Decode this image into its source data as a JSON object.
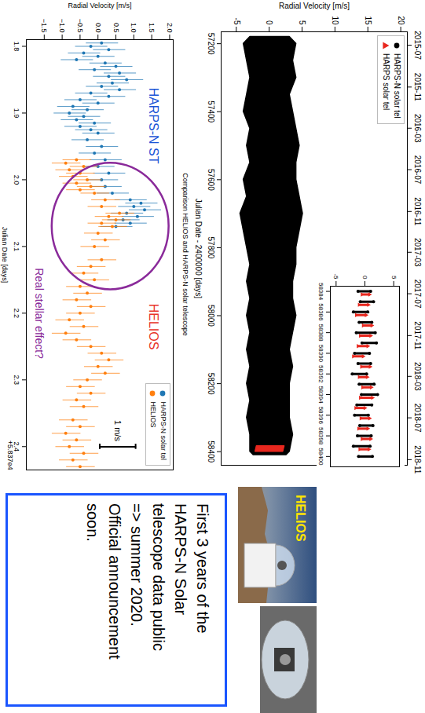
{
  "chart_data": [
    {
      "type": "band",
      "xlabel": "Julian Date - 2400000 [days]",
      "ylabel": "Radial Velocity [m/s]",
      "xlim": [
        57165,
        58440
      ],
      "xticks": [
        57200,
        57400,
        57600,
        57800,
        58000,
        58200,
        58400
      ],
      "x2ticks": [
        {
          "value": 57204.5,
          "label": "2015-07"
        },
        {
          "value": 57327.5,
          "label": "2015-11"
        },
        {
          "value": 57448.5,
          "label": "2016-03"
        },
        {
          "value": 57570.5,
          "label": "2016-07"
        },
        {
          "value": 57693.5,
          "label": "2016-11"
        },
        {
          "value": 57813.5,
          "label": "2017-03"
        },
        {
          "value": 57935.5,
          "label": "2017-07"
        },
        {
          "value": 58058.5,
          "label": "2017-11"
        },
        {
          "value": 58178.5,
          "label": "2018-03"
        },
        {
          "value": 58300.5,
          "label": "2018-07"
        },
        {
          "value": 58423.5,
          "label": "2018-11"
        }
      ],
      "ylim": [
        -7.3,
        21
      ],
      "yticks": [
        -5,
        0,
        5,
        10,
        15,
        20
      ],
      "legend": "top-left",
      "series": [
        {
          "name": "HARPS-N solar tel",
          "color": "#000000",
          "marker": "circle",
          "x": [
            57180,
            57200,
            57250,
            57300,
            57350,
            57400,
            57450,
            57500,
            57550,
            57600,
            57650,
            57700,
            57750,
            57800,
            57850,
            57900,
            57950,
            58000,
            58050,
            58100,
            58150,
            58200,
            58250,
            58300,
            58350,
            58400,
            58410
          ],
          "low": [
            -3,
            -4,
            -3.5,
            -3,
            -3.5,
            -4,
            -3,
            -3.5,
            -3,
            -4,
            -3.5,
            -4.5,
            -4,
            -3.5,
            -3,
            -3.5,
            -3,
            -3.5,
            -3,
            -3.5,
            -3,
            -3.5,
            -3,
            -3.5,
            -3,
            -3,
            -2.5
          ],
          "high": [
            3,
            4,
            3.5,
            4,
            3,
            3.5,
            4,
            4.5,
            4,
            4,
            4.5,
            5,
            4.5,
            4,
            4,
            3.5,
            3.5,
            4,
            3.5,
            3,
            3.5,
            3,
            3,
            3,
            3.5,
            3,
            2.5
          ]
        },
        {
          "name": "HARPS solar tel",
          "color": "#e8271e",
          "marker": "triangle",
          "x": [
            58384,
            58400
          ],
          "low": [
            -2.0,
            -2.2
          ],
          "high": [
            2.2,
            2.0
          ]
        }
      ]
    },
    {
      "type": "range",
      "xlim": [
        58383.5,
        58401
      ],
      "xticks": [
        58384,
        58386,
        58388,
        58390,
        58392,
        58394,
        58396,
        58398,
        58400
      ],
      "ylim": [
        -6,
        6
      ],
      "yticks": [
        -5,
        0,
        5
      ],
      "series": [
        {
          "name": "HARPS-N solar tel",
          "color": "#000000",
          "marker": "circle",
          "x": [
            58384,
            58385,
            58386,
            58387,
            58388,
            58389,
            58390,
            58391,
            58392,
            58393,
            58394,
            58395,
            58396,
            58397,
            58398,
            58399,
            58400
          ],
          "low": [
            -1.2,
            -0.8,
            -2.0,
            -1.0,
            -1.5,
            -0.5,
            -1.8,
            -1.2,
            -2.2,
            -1.0,
            -0.6,
            -1.4,
            -1.8,
            -0.9,
            -1.3,
            -2.0,
            -1.1
          ],
          "high": [
            1.0,
            1.5,
            0.5,
            1.2,
            1.8,
            2.0,
            0.8,
            1.0,
            0.3,
            1.6,
            2.2,
            1.2,
            0.6,
            1.4,
            1.1,
            0.9,
            1.3
          ]
        },
        {
          "name": "HARPS solar tel",
          "color": "#e8271e",
          "marker": "triangle",
          "x": [
            58384.3,
            58385.3,
            58386.3,
            58387.3,
            58388.3,
            58389.3,
            58390.3,
            58391.3,
            58392.3,
            58393.3,
            58394.3,
            58395.3,
            58396.3,
            58397.3,
            58398.3,
            58399.3
          ],
          "low": [
            -0.5,
            -1.0,
            -1.5,
            -0.3,
            -0.8,
            -1.2,
            -2.0,
            -0.6,
            -1.0,
            -0.4,
            -0.8,
            -1.6,
            -0.7,
            -1.1,
            -0.5,
            -0.9
          ],
          "high": [
            0.8,
            0.6,
            0.2,
            1.2,
            1.0,
            0.5,
            -0.3,
            0.9,
            0.4,
            1.1,
            1.3,
            0.0,
            0.8,
            0.5,
            1.0,
            0.7
          ]
        }
      ]
    },
    {
      "type": "scatter",
      "title": "Comparison HELIOS and HARPS-N solar telescope",
      "xlabel": "Julian Date [days]",
      "ylabel": "Radial Velocity [m/s]",
      "x_offset": "+5.837e4",
      "xlim": [
        1.79,
        2.435
      ],
      "xticks": [
        1.8,
        1.9,
        {
          "value": 2,
          "label": "2.0"
        },
        2.1,
        2.2,
        2.3,
        2.4
      ],
      "ylim": [
        -2.0,
        2.1
      ],
      "yticks": [
        {
          "value": -1.5,
          "label": "−1.5"
        },
        {
          "value": -1,
          "label": "−1.0"
        },
        {
          "value": -0.5,
          "label": "−0.5"
        },
        {
          "value": 0,
          "label": "0.0"
        },
        0.5,
        {
          "value": 1,
          "label": "1.0"
        },
        1.5,
        {
          "value": 2,
          "label": "2.0"
        }
      ],
      "legend": "top-right",
      "series": [
        {
          "name": "HARPS-N solar tel",
          "color": "#1f77b4",
          "marker": "circle",
          "error": 0.45,
          "x": [
            1.795,
            1.8,
            1.805,
            1.81,
            1.815,
            1.82,
            1.825,
            1.83,
            1.835,
            1.84,
            1.845,
            1.85,
            1.855,
            1.86,
            1.865,
            1.87,
            1.875,
            1.88,
            1.885,
            1.89,
            1.895,
            1.9,
            1.905,
            1.91,
            1.915,
            1.92,
            1.925,
            1.93,
            1.94,
            1.95,
            1.96,
            1.97,
            1.98,
            1.99,
            2.0,
            2.01,
            2.02,
            2.03,
            2.035,
            2.04,
            2.045,
            2.05,
            2.055,
            2.06,
            2.065,
            2.07
          ],
          "values": [
            0.1,
            -0.2,
            0.3,
            -0.4,
            0.0,
            -0.6,
            0.2,
            0.5,
            -0.1,
            0.6,
            0.3,
            0.8,
            0.4,
            0.1,
            0.6,
            -0.2,
            0.3,
            -0.5,
            0.0,
            -0.7,
            -0.3,
            -0.8,
            -0.4,
            -0.6,
            -0.1,
            -0.5,
            -0.2,
            0.0,
            -0.3,
            0.1,
            -0.1,
            0.2,
            0.0,
            0.3,
            0.1,
            0.2,
            0.4,
            0.9,
            1.2,
            1.0,
            1.3,
            0.8,
            1.1,
            0.7,
            0.9,
            0.5
          ]
        },
        {
          "name": "HELIOS",
          "color": "#ff7f0e",
          "marker": "circle",
          "error": 0.4,
          "x": [
            1.97,
            1.975,
            1.98,
            1.985,
            1.99,
            1.995,
            2.0,
            2.005,
            2.01,
            2.015,
            2.02,
            2.03,
            2.04,
            2.05,
            2.055,
            2.06,
            2.065,
            2.07,
            2.08,
            2.09,
            2.1,
            2.12,
            2.13,
            2.14,
            2.15,
            2.16,
            2.17,
            2.18,
            2.19,
            2.2,
            2.21,
            2.22,
            2.23,
            2.24,
            2.25,
            2.26,
            2.27,
            2.28,
            2.29,
            2.3,
            2.31,
            2.32,
            2.33,
            2.34,
            2.36,
            2.37,
            2.38,
            2.39,
            2.4,
            2.41,
            2.42,
            2.43
          ],
          "values": [
            -0.6,
            -0.9,
            -0.4,
            -0.8,
            -0.5,
            -0.7,
            -0.3,
            -0.6,
            -0.2,
            -0.5,
            -0.1,
            0.2,
            0.1,
            0.6,
            0.3,
            0.5,
            0.1,
            0.4,
            0.0,
            0.2,
            -0.1,
            0.1,
            -0.2,
            -0.4,
            -0.1,
            -0.5,
            -0.3,
            -0.6,
            -0.2,
            -0.5,
            -0.8,
            -0.4,
            -0.9,
            -0.6,
            -0.2,
            0.1,
            0.3,
            0.0,
            0.2,
            -0.3,
            -0.5,
            -0.2,
            -0.6,
            -0.4,
            -0.7,
            -0.5,
            -0.9,
            -0.6,
            -0.8,
            -0.4,
            -0.7,
            -0.5
          ]
        }
      ],
      "annotations": [
        {
          "text": "HARPS-N ST",
          "color": "#1a55d6"
        },
        {
          "text": "HELIOS",
          "color": "#e8342a"
        },
        {
          "text": "Real stellar effect?",
          "color": "#8a2a9a"
        }
      ],
      "scale_bar": {
        "value": 1,
        "label": "1 m/s"
      }
    }
  ],
  "photo_label": "HELIOS",
  "text_box": {
    "lines": [
      "First 3 years of the",
      "HARPS-N Solar",
      "telescope data public",
      "=> summer 2020.",
      "Official announcement",
      "soon."
    ]
  }
}
